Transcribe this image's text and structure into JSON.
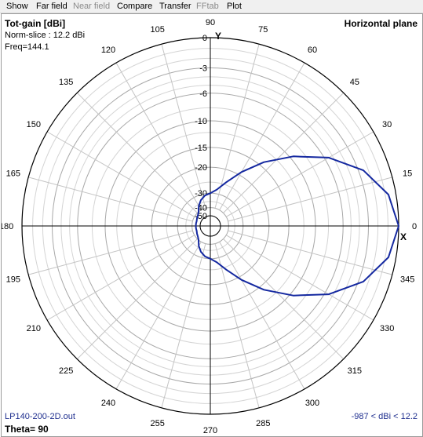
{
  "menu": [
    {
      "label": "Show",
      "enabled": true
    },
    {
      "label": "Far field",
      "enabled": true
    },
    {
      "label": "Near field",
      "enabled": false
    },
    {
      "label": "Compare",
      "enabled": true
    },
    {
      "label": "Transfer",
      "enabled": true
    },
    {
      "label": "FFtab",
      "enabled": false
    },
    {
      "label": "Plot",
      "enabled": true
    }
  ],
  "plot": {
    "title": "Tot-gain [dBi]",
    "norm_slice": "Norm-slice : 12.2 dBi",
    "freq": "Freq=144.1",
    "plane": "Horizontal plane",
    "file": "LP140-200-2D.out",
    "theta": "Theta= 90",
    "range": "-987 < dBi < 12.2",
    "x_axis": "X",
    "y_axis": "Y",
    "trace_color": "#1428a0"
  },
  "chart_data": {
    "type": "polar",
    "angle_labels": [
      "0",
      "15",
      "30",
      "45",
      "60",
      "75",
      "90",
      "105",
      "120",
      "135",
      "150",
      "165",
      "180",
      "195",
      "210",
      "225",
      "240",
      "255",
      "270",
      "285",
      "300",
      "315",
      "330",
      "345"
    ],
    "radial_labels": [
      "0",
      "-3",
      "-6",
      "-10",
      "-15",
      "-20",
      "-30",
      "-40",
      "-50"
    ],
    "radial_scale": "ARRL log",
    "angle_step_deg": 15,
    "grid": true,
    "series": [
      {
        "angle_deg": [
          0,
          10,
          20,
          30,
          40,
          50,
          60,
          70,
          80,
          90,
          100,
          110,
          120,
          130,
          140,
          150,
          160,
          170,
          180,
          190,
          200,
          210,
          220,
          230,
          240,
          250,
          260,
          270,
          280,
          290,
          300,
          310,
          320,
          330,
          340,
          350
        ],
        "gain_db": [
          0,
          -0.7,
          -2.5,
          -5.5,
          -9.5,
          -14,
          -19,
          -24,
          -28,
          -30,
          -31,
          -33,
          -36,
          -40,
          -42,
          -43,
          -44,
          -44,
          -44,
          -44,
          -44,
          -43,
          -42,
          -40,
          -36,
          -33,
          -31,
          -30,
          -28,
          -24,
          -19,
          -14,
          -9.5,
          -5.5,
          -2.5,
          -0.7
        ]
      }
    ]
  }
}
